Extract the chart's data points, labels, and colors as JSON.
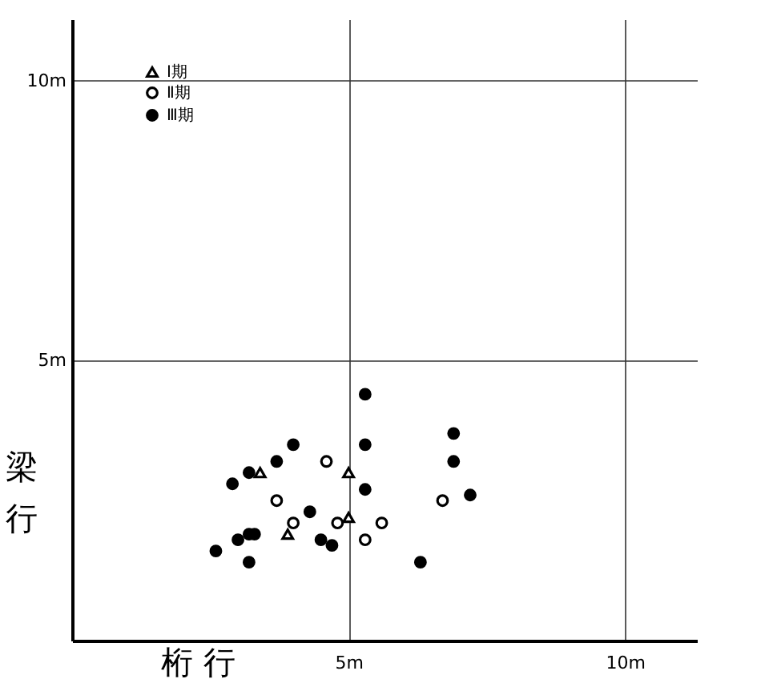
{
  "chart_data": {
    "type": "scatter",
    "xlabel": "桁 行",
    "ylabel": "梁行",
    "xlim": [
      0,
      11.3
    ],
    "ylim": [
      0,
      11.1
    ],
    "xticks": [
      {
        "value": 5,
        "label": "5m"
      },
      {
        "value": 10,
        "label": "10m"
      }
    ],
    "yticks": [
      {
        "value": 5,
        "label": "5m"
      },
      {
        "value": 10,
        "label": "10m"
      }
    ],
    "grid": true,
    "legend": "top left",
    "series": [
      {
        "name": "Ⅰ期",
        "color": "#000000",
        "marker": "triangle",
        "x": [
          3.4,
          5.0,
          5.0,
          3.9
        ],
        "values": [
          3.0,
          3.0,
          2.2,
          1.9
        ]
      },
      {
        "name": "Ⅱ期",
        "color": "#000000",
        "marker": "circle",
        "x": [
          4.6,
          3.7,
          4.0,
          4.8,
          5.6,
          5.3,
          6.7
        ],
        "values": [
          3.2,
          2.5,
          2.1,
          2.1,
          2.1,
          1.8,
          2.5
        ]
      },
      {
        "name": "Ⅲ期",
        "color": "#000000",
        "marker": "circle",
        "x": [
          5.3,
          4.0,
          5.3,
          3.7,
          3.2,
          2.9,
          5.3,
          4.3,
          3.0,
          3.2,
          3.3,
          2.6,
          4.5,
          4.7,
          3.2,
          6.3,
          6.9,
          6.9,
          7.2
        ],
        "values": [
          4.4,
          3.5,
          3.5,
          3.2,
          3.0,
          2.8,
          2.7,
          2.3,
          1.8,
          1.9,
          1.9,
          1.6,
          1.8,
          1.7,
          1.4,
          1.4,
          3.7,
          3.2,
          2.6
        ]
      }
    ]
  }
}
